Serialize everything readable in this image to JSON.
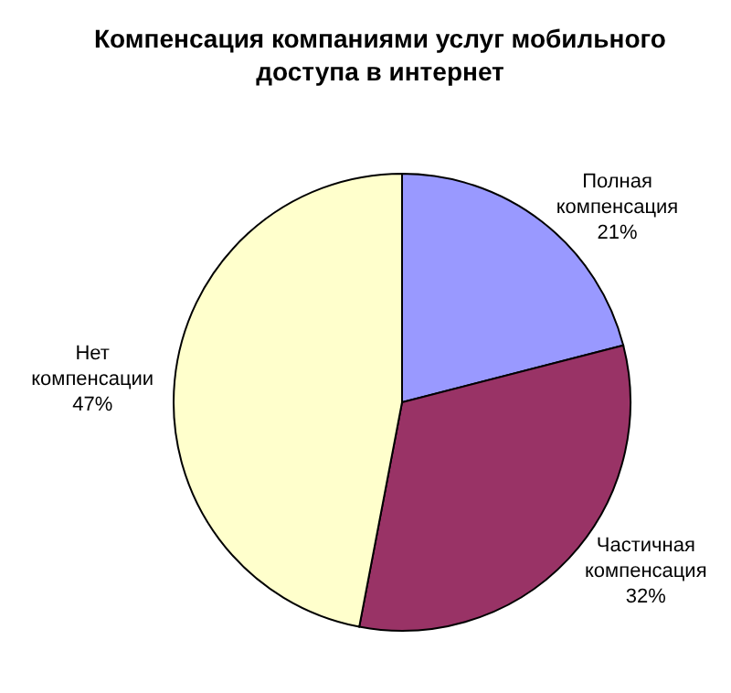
{
  "chart_data": {
    "type": "pie",
    "title": "Компенсация компаниями услуг мобильного доступа в интернет",
    "categories": [
      "Полная компенсация",
      "Частичная компенсация",
      "Нет компенсации"
    ],
    "values": [
      21,
      32,
      47
    ],
    "value_labels": [
      "21%",
      "32%",
      "47%"
    ],
    "colors": [
      "#9999ff",
      "#993366",
      "#ffffcc"
    ],
    "legend": false
  }
}
